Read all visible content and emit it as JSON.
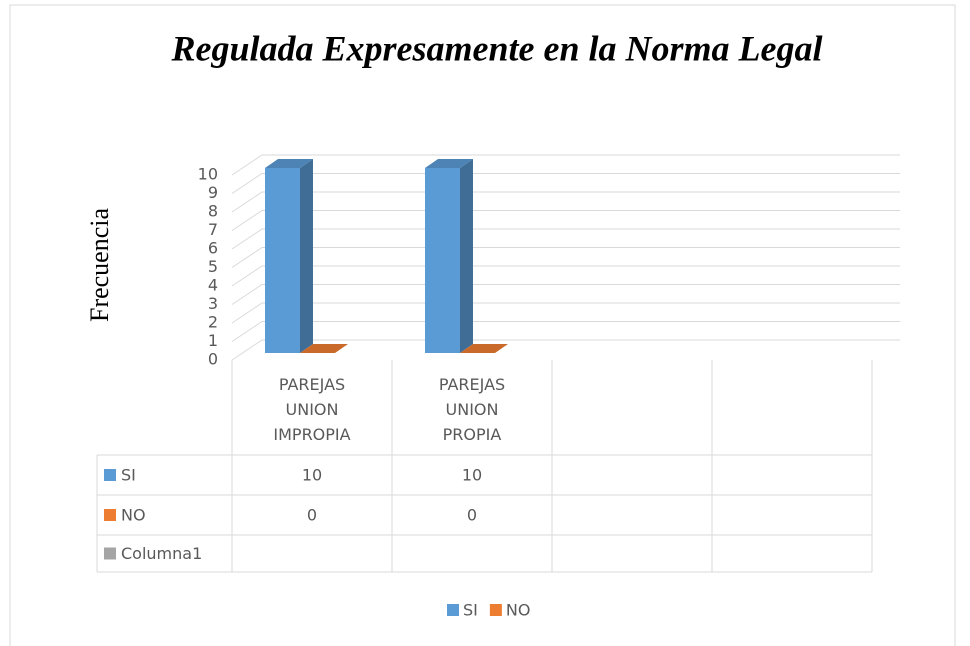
{
  "chart_data": {
    "type": "bar3d",
    "title": "Regulada Expresamente en la Norma Legal",
    "y_label": "Frecuencia",
    "categories": [
      "PAREJAS UNION IMPROPIA",
      "PAREJAS UNION PROPIA",
      null,
      null
    ],
    "series": [
      {
        "name": "SI",
        "color": "#5b9bd5",
        "values": [
          10,
          10,
          null,
          null
        ]
      },
      {
        "name": "NO",
        "color": "#ed7d31",
        "values": [
          0,
          0,
          null,
          null
        ]
      },
      {
        "name": "Columna1",
        "color": "#a5a5a5",
        "values": [
          null,
          null,
          null,
          null
        ]
      }
    ],
    "ylim": [
      0,
      10
    ],
    "yticks": [
      0,
      1,
      2,
      3,
      4,
      5,
      6,
      7,
      8,
      9,
      10
    ],
    "grid": true,
    "data_table": true,
    "legend": "bottom"
  }
}
